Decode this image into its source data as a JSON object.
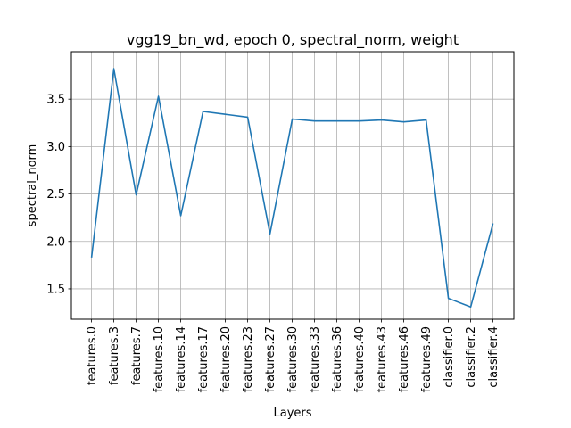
{
  "chart_data": {
    "type": "line",
    "title": "vgg19_bn_wd, epoch 0, spectral_norm, weight",
    "xlabel": "Layers",
    "ylabel": "spectral_norm",
    "categories": [
      "features.0",
      "features.3",
      "features.7",
      "features.10",
      "features.14",
      "features.17",
      "features.20",
      "features.23",
      "features.27",
      "features.30",
      "features.33",
      "features.36",
      "features.40",
      "features.43",
      "features.46",
      "features.49",
      "classifier.0",
      "classifier.2",
      "classifier.4"
    ],
    "series": [
      {
        "values": [
          1.83,
          3.82,
          2.49,
          3.53,
          2.27,
          3.37,
          3.34,
          3.31,
          2.08,
          3.29,
          3.27,
          3.27,
          3.27,
          3.28,
          3.26,
          3.28,
          1.4,
          1.31,
          2.19
        ],
        "color": "#1f77b4"
      }
    ],
    "ylim": [
      1.18,
      4.0
    ],
    "yticks": [
      1.5,
      2.0,
      2.5,
      3.0,
      3.5
    ],
    "ytick_labels": [
      "1.5",
      "2.0",
      "2.5",
      "3.0",
      "3.5"
    ],
    "grid": true,
    "legend": "none"
  }
}
